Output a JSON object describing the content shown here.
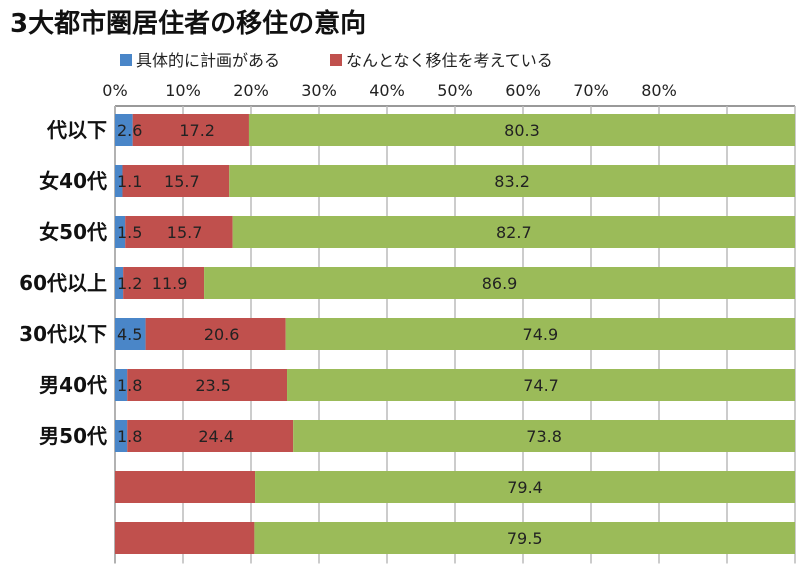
{
  "chart_data": {
    "type": "bar",
    "orientation": "horizontal",
    "stacked": true,
    "title": "3大都市圏居住者の移住の意向",
    "categories": [
      "代以下",
      "女40代",
      "女50代",
      "60代以上",
      "30代以下",
      "男40代",
      "男50代",
      "",
      ""
    ],
    "series": [
      {
        "name": "具体的に計画がある",
        "color": "#4a86c8",
        "values": [
          2.6,
          1.1,
          1.5,
          1.2,
          4.5,
          1.8,
          1.8,
          null,
          null
        ]
      },
      {
        "name": "なんとなく移住を考えている",
        "color": "#c0504d",
        "values": [
          17.2,
          15.7,
          15.7,
          11.9,
          20.6,
          23.5,
          24.4,
          null,
          null
        ]
      },
      {
        "name": "",
        "color": "#9bbb59",
        "values": [
          80.3,
          83.2,
          82.7,
          86.9,
          74.9,
          74.7,
          73.8,
          79.4,
          79.5
        ]
      }
    ],
    "xticks": [
      "0%",
      "10%",
      "20%",
      "30%",
      "40%",
      "50%",
      "60%",
      "70%",
      "80%"
    ],
    "xlim": [
      0,
      100
    ],
    "grid": true,
    "legend": "top-left"
  }
}
